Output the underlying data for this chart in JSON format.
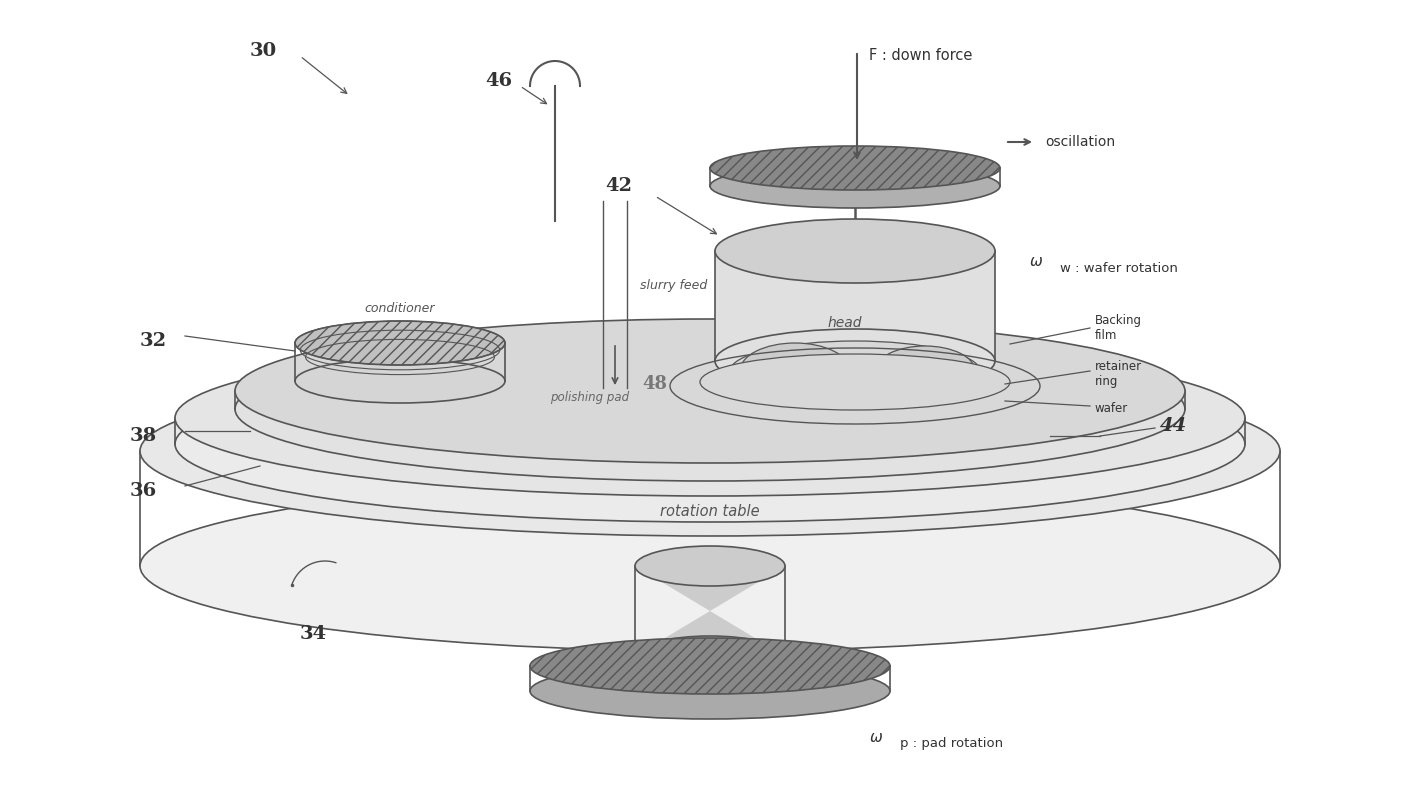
{
  "bg_color": "#ffffff",
  "lc": "#555555",
  "lc_dark": "#333333",
  "figsize": [
    14.11,
    8.06
  ],
  "dpi": 100,
  "labels": {
    "num_30": "30",
    "num_32": "32",
    "num_34": "34",
    "num_36": "36",
    "num_38": "38",
    "num_42": "42",
    "num_44": "44",
    "num_46": "46",
    "num_48": "48",
    "conditioner": "conditioner",
    "slurry_feed": "slurry feed",
    "head": "head",
    "polishing_pad": "polishing pad",
    "rotation_table": "rotation table",
    "F_down": "F : down force",
    "oscillation": "oscillation",
    "wafer_rotation": "ω",
    "wafer_rotation2": "w : wafer rotation",
    "pad_rotation": "ω",
    "pad_rotation2": "p : pad rotation",
    "backing_film": "Backing\nfilm",
    "retainer_ring": "retainer\nring",
    "wafer": "wafer"
  }
}
